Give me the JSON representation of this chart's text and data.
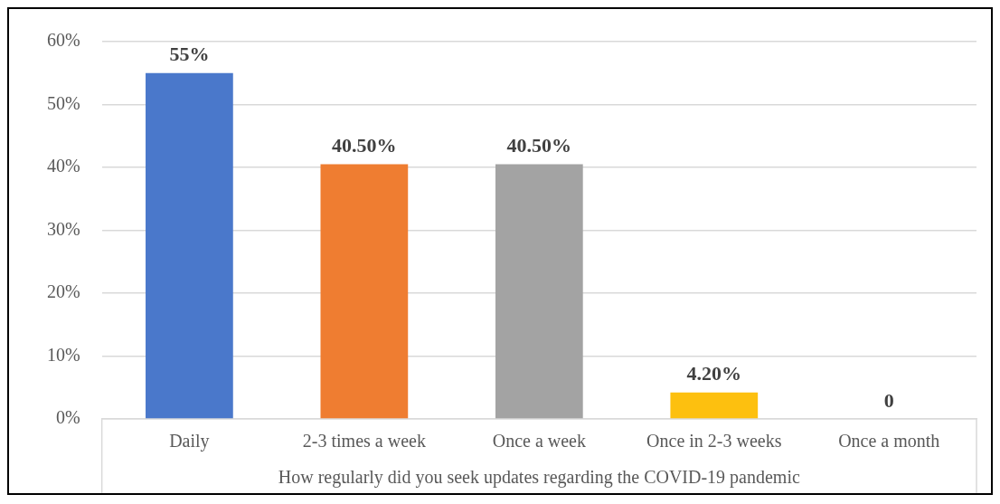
{
  "chart_data": {
    "type": "bar",
    "categories": [
      "Daily",
      "2-3 times a week",
      "Once a week",
      "Once in 2-3 weeks",
      "Once a month"
    ],
    "values": [
      55,
      40.5,
      40.5,
      4.2,
      0
    ],
    "colors": [
      "#4a78cb",
      "#ef7d31",
      "#a3a3a3",
      "#fdc00f",
      "#5b9bd5"
    ],
    "value_labels": [
      "55%",
      "40.50%",
      "40.50%",
      "4.20%",
      "0"
    ],
    "xlabel": "How regularly did you seek updates regarding the COVID-19 pandemic",
    "ylim": [
      0,
      60
    ],
    "yticks": [
      {
        "value": 0,
        "label": "0%"
      },
      {
        "value": 10,
        "label": "10%"
      },
      {
        "value": 20,
        "label": "20%"
      },
      {
        "value": 30,
        "label": "30%"
      },
      {
        "value": 40,
        "label": "40%"
      },
      {
        "value": 50,
        "label": "50%"
      },
      {
        "value": 60,
        "label": "60%"
      }
    ],
    "grid": "y"
  }
}
